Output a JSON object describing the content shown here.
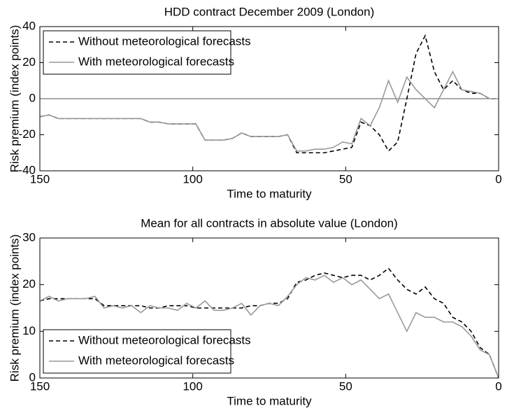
{
  "chart_data": [
    {
      "type": "line",
      "title": "HDD contract December 2009 (London)",
      "x_label": "Time to maturity",
      "y_label": "Risk premium (index points)",
      "x": [
        150,
        147,
        144,
        141,
        138,
        135,
        132,
        129,
        126,
        123,
        120,
        117,
        114,
        111,
        108,
        105,
        102,
        99,
        96,
        93,
        90,
        87,
        84,
        81,
        78,
        75,
        72,
        69,
        66,
        63,
        60,
        57,
        54,
        51,
        48,
        45,
        42,
        39,
        36,
        33,
        30,
        27,
        24,
        21,
        18,
        15,
        12,
        9,
        6,
        3,
        0
      ],
      "series": [
        {
          "name": "Without meteorological forecasts",
          "color": "#000000",
          "dash": true,
          "values": [
            -10,
            -9,
            -11,
            -11,
            -11,
            -11,
            -11,
            -11,
            -11,
            -11,
            -11,
            -11,
            -13,
            -13,
            -14,
            -14,
            -14,
            -14,
            -23,
            -23,
            -23,
            -22,
            -19,
            -21,
            -21,
            -21,
            -21,
            -20,
            -30,
            -30,
            -30,
            -30,
            -29,
            -28,
            -27,
            -13,
            -15,
            -20,
            -29,
            -24,
            0,
            25,
            35,
            15,
            5,
            10,
            5,
            3,
            3,
            0,
            0
          ]
        },
        {
          "name": "With meteorological forecasts",
          "color": "#999999",
          "dash": false,
          "values": [
            -10,
            -9,
            -11,
            -11,
            -11,
            -11,
            -11,
            -11,
            -11,
            -11,
            -11,
            -11,
            -13,
            -13,
            -14,
            -14,
            -14,
            -14,
            -23,
            -23,
            -23,
            -22,
            -19,
            -21,
            -21,
            -21,
            -21,
            -20,
            -29,
            -29,
            -28,
            -28,
            -27,
            -24,
            -25,
            -11,
            -15,
            -5,
            10,
            -2,
            12,
            5,
            0,
            -5,
            5,
            15,
            5,
            4,
            3,
            0,
            0
          ]
        }
      ],
      "xlim": [
        150,
        0
      ],
      "xticks": [
        150,
        100,
        50,
        0
      ],
      "ylim": [
        -40,
        40
      ],
      "yticks": [
        -40,
        -20,
        0,
        20,
        40
      ],
      "reference_line": 0,
      "legend": "upper left"
    },
    {
      "type": "line",
      "title": "Mean for all contracts in absolute value (London)",
      "x_label": "Time to maturity",
      "y_label": "Risk premium (index points)",
      "x": [
        150,
        147,
        144,
        141,
        138,
        135,
        132,
        129,
        126,
        123,
        120,
        117,
        114,
        111,
        108,
        105,
        102,
        99,
        96,
        93,
        90,
        87,
        84,
        81,
        78,
        75,
        72,
        69,
        66,
        63,
        60,
        57,
        54,
        51,
        48,
        45,
        42,
        39,
        36,
        33,
        30,
        27,
        24,
        21,
        18,
        15,
        12,
        9,
        6,
        3,
        0
      ],
      "series": [
        {
          "name": "Without meteorological forecasts",
          "color": "#000000",
          "dash": true,
          "values": [
            16.5,
            17,
            17,
            17,
            17,
            17,
            17,
            15.5,
            15.5,
            15.5,
            15.5,
            15.5,
            15,
            15,
            15.5,
            15.5,
            15.5,
            15,
            15,
            15,
            15,
            15,
            15,
            15.5,
            15.5,
            16,
            16,
            17,
            20.5,
            21,
            22,
            22.5,
            22,
            21.5,
            22,
            22,
            21,
            22,
            23.5,
            21,
            19,
            18,
            19.5,
            17,
            16,
            13,
            12,
            10,
            6.5,
            5,
            0
          ]
        },
        {
          "name": "With meteorological forecasts",
          "color": "#999999",
          "dash": false,
          "values": [
            16.5,
            17.5,
            16.5,
            17,
            17,
            17,
            17.5,
            15,
            15.5,
            15,
            15.5,
            14,
            15.5,
            15,
            15,
            14.5,
            16,
            15,
            16.5,
            14.5,
            14.5,
            15,
            16,
            13.5,
            15.5,
            16,
            15.5,
            17.5,
            20,
            21.5,
            21,
            22,
            20.5,
            21.5,
            20,
            21,
            19,
            17,
            18,
            14,
            10,
            14,
            13,
            13,
            12,
            12,
            11,
            9,
            6,
            5,
            0
          ]
        }
      ],
      "xlim": [
        150,
        0
      ],
      "xticks": [
        150,
        100,
        50,
        0
      ],
      "ylim": [
        0,
        30
      ],
      "yticks": [
        0,
        10,
        20,
        30
      ],
      "legend": "lower left"
    }
  ]
}
